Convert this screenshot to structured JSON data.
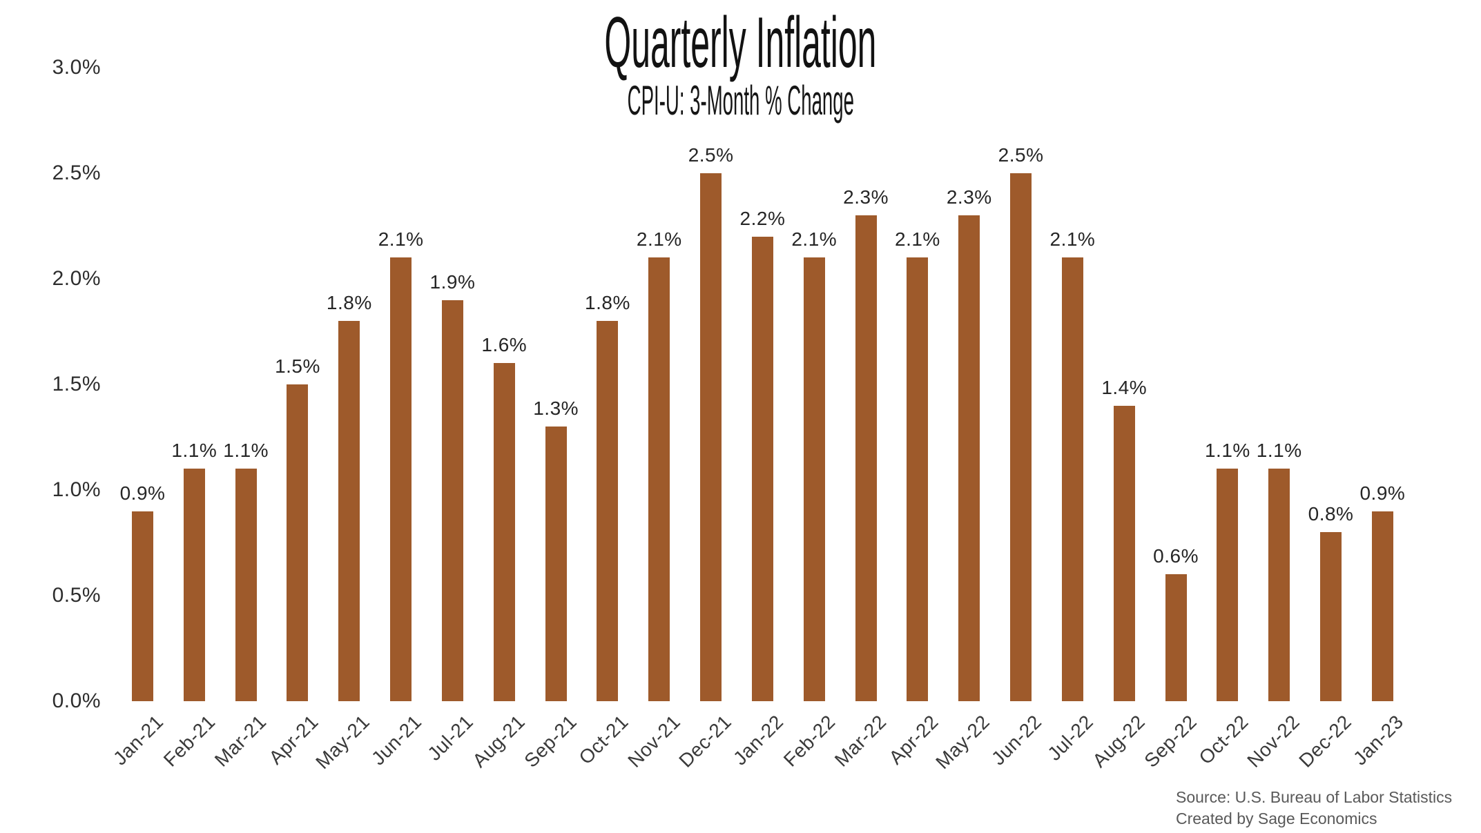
{
  "header": {
    "title": "Quarterly Inflation",
    "subtitle": "CPI-U: 3-Month % Change"
  },
  "chart_data": {
    "type": "bar",
    "title": "Quarterly Inflation",
    "subtitle": "CPI-U: 3-Month % Change",
    "categories": [
      "Jan-21",
      "Feb-21",
      "Mar-21",
      "Apr-21",
      "May-21",
      "Jun-21",
      "Jul-21",
      "Aug-21",
      "Sep-21",
      "Oct-21",
      "Nov-21",
      "Dec-21",
      "Jan-22",
      "Feb-22",
      "Mar-22",
      "Apr-22",
      "May-22",
      "Jun-22",
      "Jul-22",
      "Aug-22",
      "Sep-22",
      "Oct-22",
      "Nov-22",
      "Dec-22",
      "Jan-23"
    ],
    "values": [
      0.9,
      1.1,
      1.1,
      1.5,
      1.8,
      2.1,
      1.9,
      1.6,
      1.3,
      1.8,
      2.1,
      2.5,
      2.2,
      2.1,
      2.3,
      2.1,
      2.3,
      2.5,
      2.1,
      1.4,
      0.6,
      1.1,
      1.1,
      0.8,
      0.9
    ],
    "value_labels": [
      "0.9%",
      "1.1%",
      "1.1%",
      "1.5%",
      "1.8%",
      "2.1%",
      "1.9%",
      "1.6%",
      "1.3%",
      "1.8%",
      "2.1%",
      "2.5%",
      "2.2%",
      "2.1%",
      "2.3%",
      "2.1%",
      "2.3%",
      "2.5%",
      "2.1%",
      "1.4%",
      "0.6%",
      "1.1%",
      "1.1%",
      "0.8%",
      "0.9%"
    ],
    "yticks": [
      "3.0%",
      "2.5%",
      "2.0%",
      "1.5%",
      "1.0%",
      "0.5%",
      "0.0%"
    ],
    "ylim": [
      0.0,
      3.0
    ],
    "ylabel": "",
    "xlabel": "",
    "grid": false,
    "legend": false,
    "bar_color": "#9E5A2B",
    "label_color": "#262626",
    "axis_label_color": "#2e2e2e",
    "background_color": "#ffffff"
  },
  "footer": {
    "source_line1": "Source: U.S. Bureau of Labor Statistics",
    "source_line2": "Created by Sage Economics"
  }
}
